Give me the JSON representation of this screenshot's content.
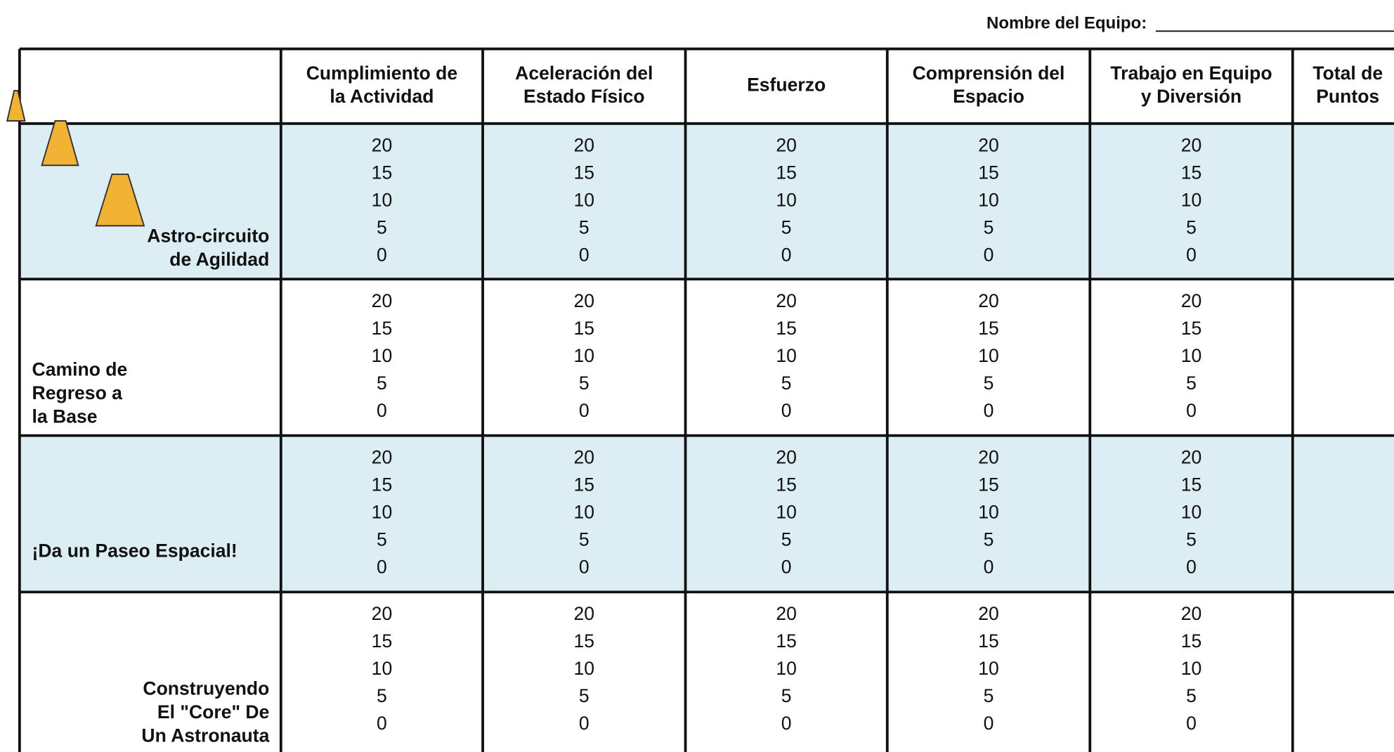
{
  "header": {
    "team_label": "Nombre del Equipo:"
  },
  "table": {
    "columns": [
      [
        "Cumplimiento de",
        "la Actividad"
      ],
      [
        "Aceleración del",
        "Estado Físico"
      ],
      [
        "Esfuerzo"
      ],
      [
        "Comprensión del",
        "Espacio"
      ],
      [
        "Trabajo en Equipo",
        "y Diversión"
      ],
      [
        "Total de",
        "Puntos"
      ]
    ],
    "scores": [
      20,
      15,
      10,
      5,
      0
    ],
    "rows": [
      {
        "label": [
          "Astro-circuito",
          "de Agilidad"
        ]
      },
      {
        "label": [
          "Camino de",
          "Regreso a",
          "la Base"
        ]
      },
      {
        "label": [
          "¡Da un Paseo Espacial!"
        ]
      },
      {
        "label": [
          "Construyendo",
          "El \"Core\" De",
          "Un Astronauta"
        ]
      }
    ]
  }
}
